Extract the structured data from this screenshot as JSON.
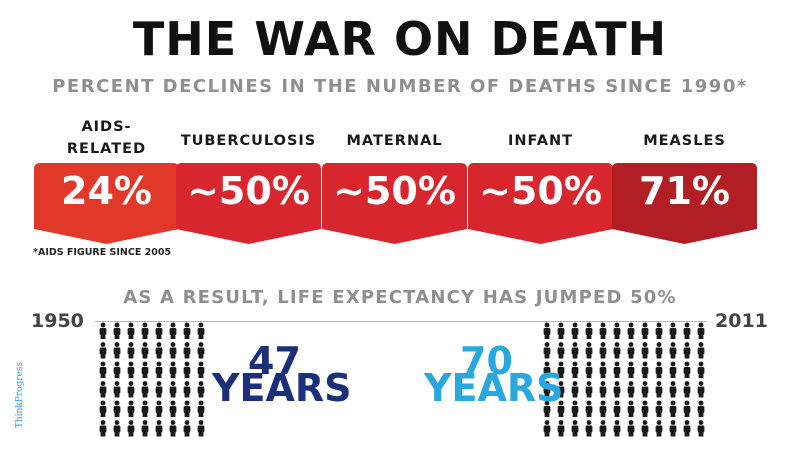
{
  "title": "THE WAR ON DEATH",
  "subtitle": "PERCENT DECLINES IN THE NUMBER OF DEATHS SINCE 1990*",
  "categories": [
    {
      "label_line1": "AIDS-",
      "label_line2": "RELATED",
      "value": "24%",
      "color": "#e0392a"
    },
    {
      "label_line1": "TUBERCULOSIS",
      "label_line2": "",
      "value": "~50%",
      "color": "#d8262f"
    },
    {
      "label_line1": "MATERNAL",
      "label_line2": "",
      "value": "~50%",
      "color": "#d8262f"
    },
    {
      "label_line1": "INFANT",
      "label_line2": "",
      "value": "~50%",
      "color": "#d8262f"
    },
    {
      "label_line1": "MEASLES",
      "label_line2": "",
      "value": "71%",
      "color": "#b11f25"
    }
  ],
  "footnote": "*AIDS FIGURE SINCE 2005",
  "result_text": "AS A RESULT, LIFE EXPECTANCY HAS JUMPED 50%",
  "year_start": "1950",
  "year_end": "2011",
  "life_1950": {
    "number": "47",
    "unit": "YEARS",
    "color": "#1b2f7a"
  },
  "life_2011": {
    "number": "70",
    "unit": "YEARS",
    "color": "#29a7df"
  },
  "people_grid_1950": {
    "rows": 6,
    "cols": 8
  },
  "people_grid_2011": {
    "rows": 6,
    "cols": 12
  },
  "credit": "ThinkProgress"
}
